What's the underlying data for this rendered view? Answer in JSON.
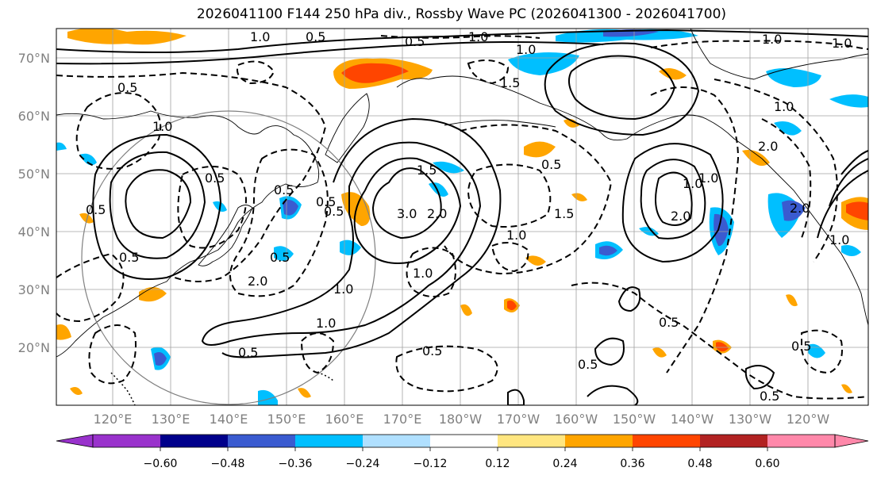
{
  "title": "2026041100 F144 250 hPa div., Rossby Wave PC (2026041300 - 2026041700)",
  "lat_labels": [
    "70°N",
    "60°N",
    "50°N",
    "40°N",
    "30°N",
    "20°N"
  ],
  "lon_labels": [
    "120°E",
    "130°E",
    "140°E",
    "150°E",
    "160°E",
    "170°E",
    "180°W",
    "170°W",
    "160°W",
    "150°W",
    "140°W",
    "130°W",
    "120°W"
  ],
  "colorbar": {
    "ticks": [
      "−0.60",
      "−0.48",
      "−0.36",
      "−0.24",
      "−0.12",
      "0.12",
      "0.24",
      "0.36",
      "0.48",
      "0.60"
    ],
    "colors": [
      "#9932cc",
      "#00008b",
      "#3a5bd0",
      "#00bfff",
      "#b0e0ff",
      "#ffffff",
      "#ffe680",
      "#ffa500",
      "#ff4500",
      "#b22222",
      "#ff88aa"
    ]
  },
  "contour_labels": [
    "0.5",
    "0.5",
    "1.0",
    "0.5",
    "0.5",
    "1.0",
    "1.0",
    "0.5",
    "1.0",
    "1.0",
    "0.5",
    "1.5",
    "3.0",
    "2.0",
    "1.5",
    "1.0",
    "1.0",
    "0.5",
    "0.5",
    "0.5",
    "1.0",
    "2.0",
    "2.0",
    "1.0",
    "2.0",
    "1.0",
    "0.5",
    "0.5",
    "1.0",
    "0.5",
    "0.5",
    "0.5",
    "1.5",
    "2.0",
    "1.0",
    "1.0",
    "1.0",
    "0.5",
    "0.5",
    "0.5"
  ]
}
